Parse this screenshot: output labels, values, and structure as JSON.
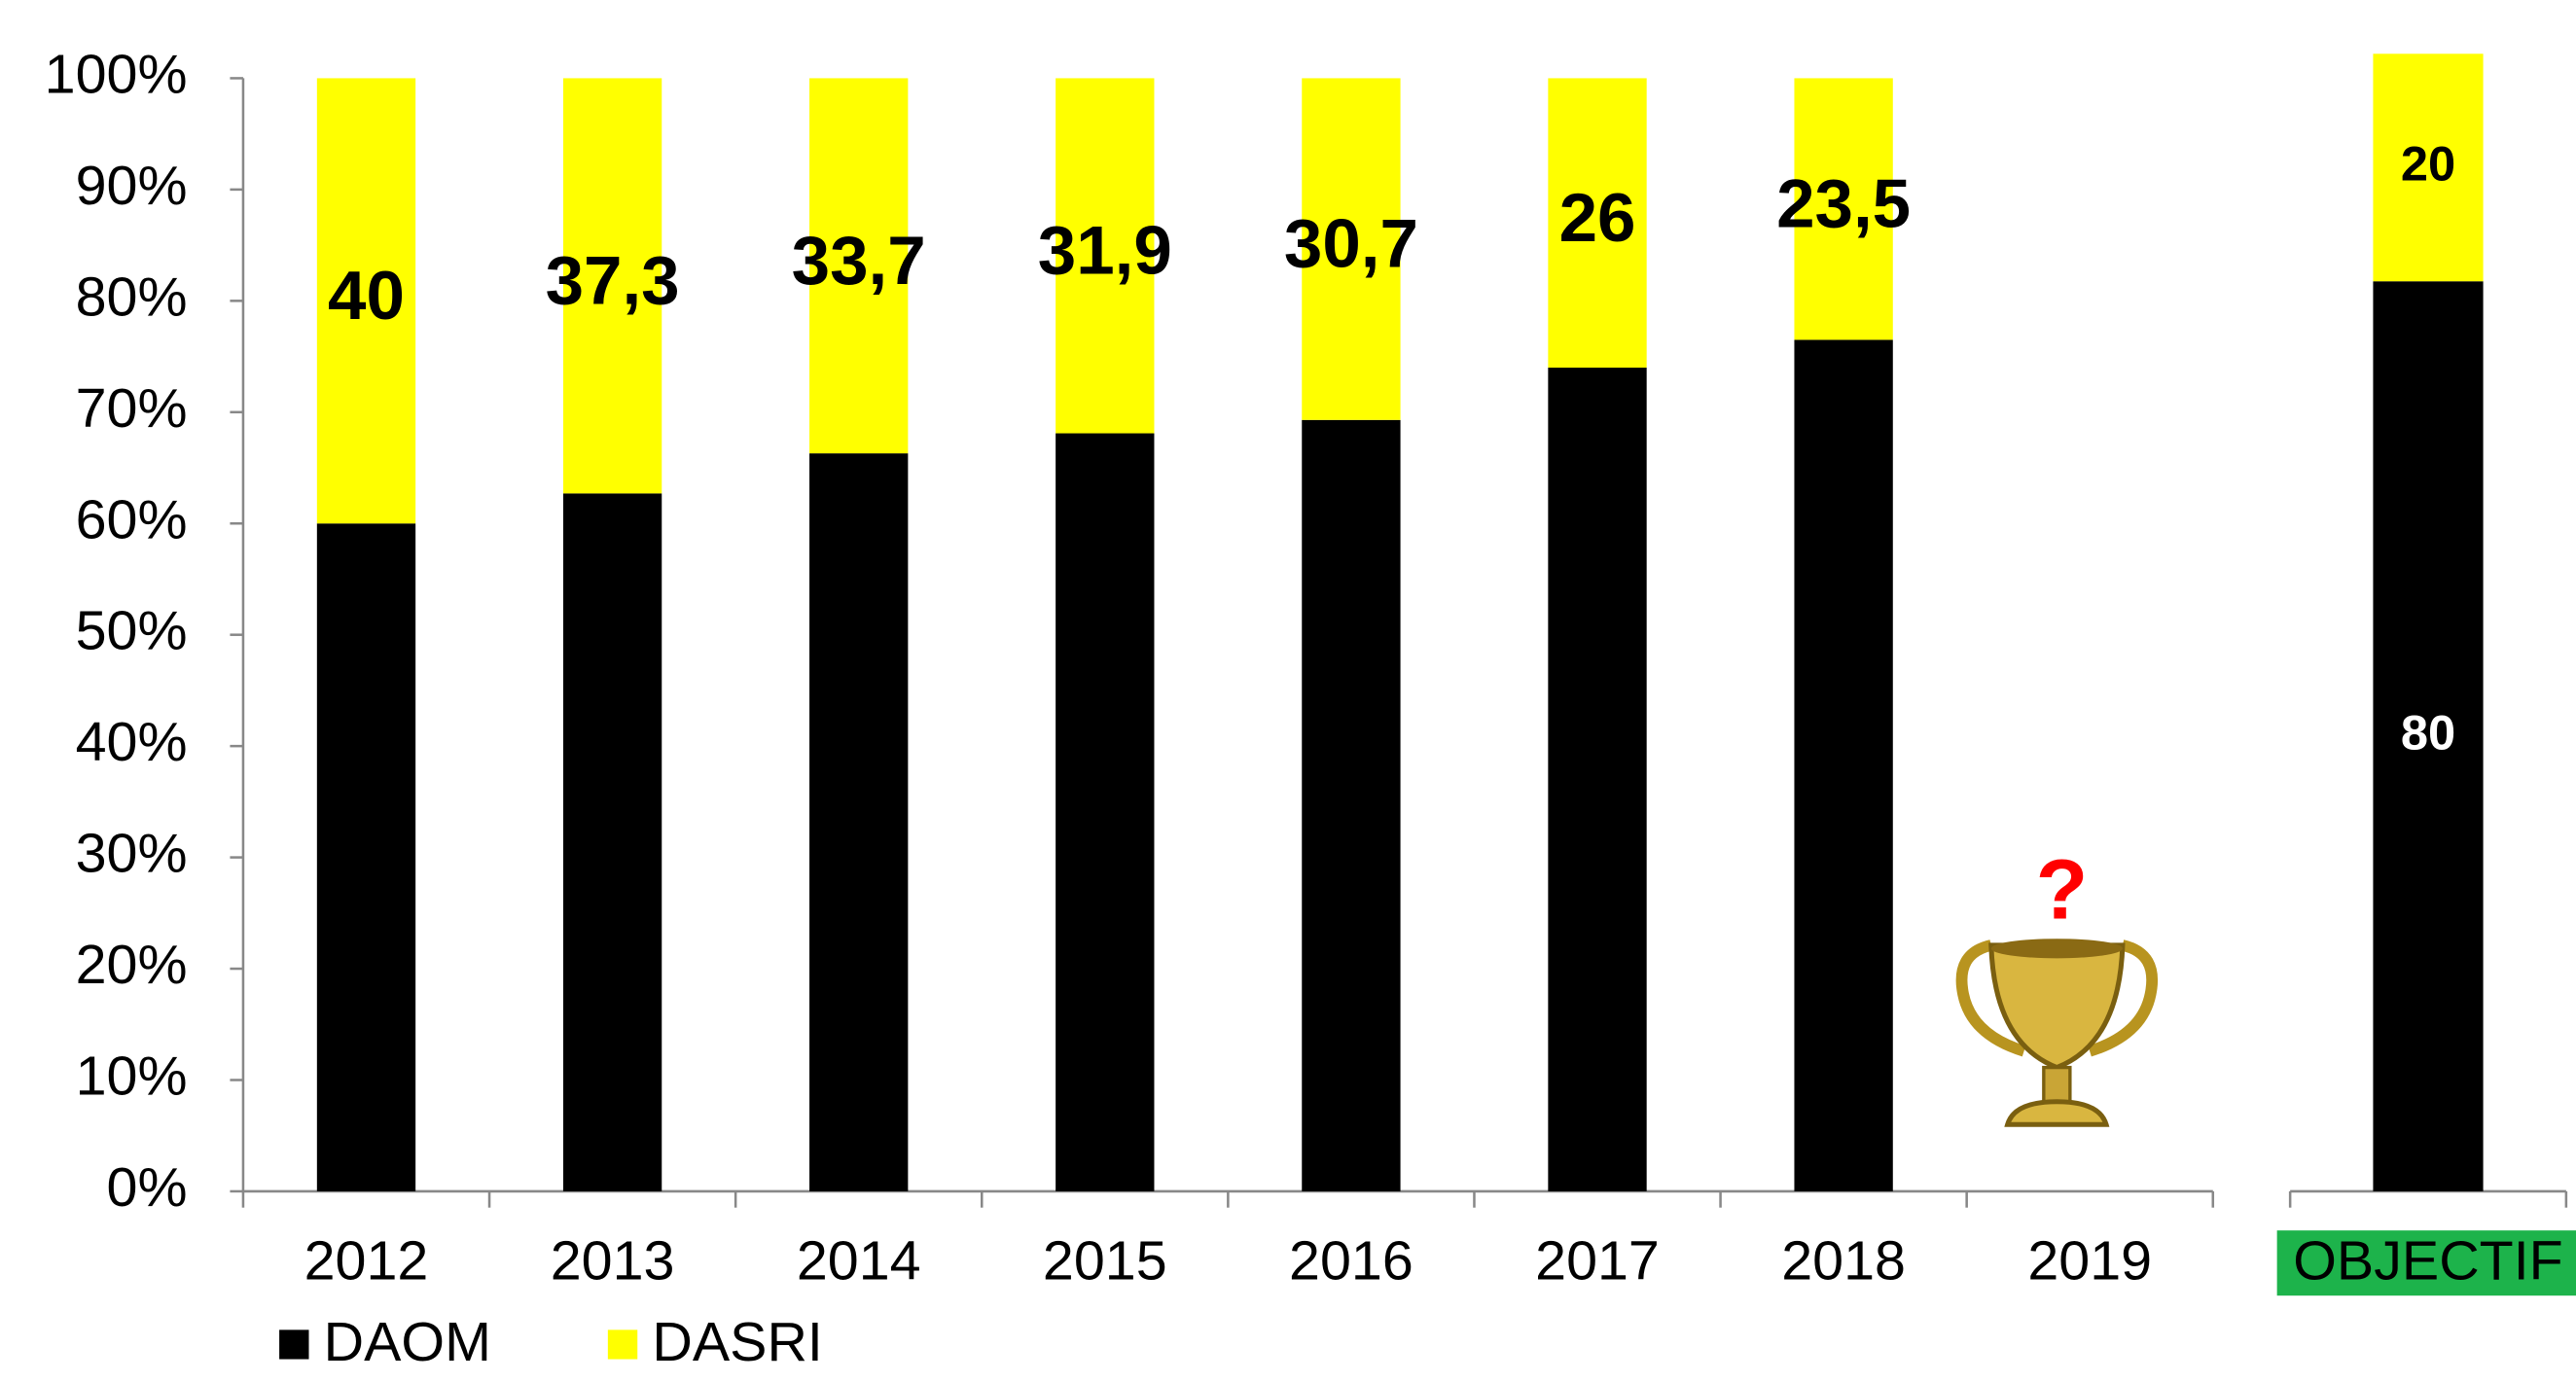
{
  "chart_data": [
    {
      "type": "stacked_bar",
      "categories": [
        "2012",
        "2013",
        "2014",
        "2015",
        "2016",
        "2017",
        "2018",
        "2019"
      ],
      "series": [
        {
          "name": "DAOM",
          "color": "#000000",
          "values": [
            60,
            62.7,
            66.3,
            68.1,
            69.3,
            74,
            76.5,
            null
          ]
        },
        {
          "name": "DASRI",
          "color": "#ffff00",
          "values": [
            40,
            37.3,
            33.7,
            31.9,
            30.7,
            26,
            23.5,
            null
          ],
          "value_labels": [
            "40",
            "37,3",
            "33,7",
            "31,9",
            "30,7",
            "26",
            "23,5",
            null
          ],
          "label_color": "#000000"
        }
      ],
      "ylim": [
        0,
        100
      ],
      "yticks": [
        {
          "value": 0,
          "label": "0%"
        },
        {
          "value": 10,
          "label": "10%"
        },
        {
          "value": 20,
          "label": "20%"
        },
        {
          "value": 30,
          "label": "30%"
        },
        {
          "value": 40,
          "label": "40%"
        },
        {
          "value": 50,
          "label": "50%"
        },
        {
          "value": 60,
          "label": "60%"
        },
        {
          "value": 70,
          "label": "70%"
        },
        {
          "value": 80,
          "label": "80%"
        },
        {
          "value": 90,
          "label": "90%"
        },
        {
          "value": 100,
          "label": "100%"
        }
      ],
      "annotations": [
        "?"
      ],
      "legend": "bottom-left"
    },
    {
      "type": "stacked_bar",
      "categories": [
        "OBJECTIF"
      ],
      "category_background": "#1db34b",
      "series": [
        {
          "name": "DAOM",
          "color": "#000000",
          "values": [
            80
          ],
          "label_color": "#ffffff"
        },
        {
          "name": "DASRI",
          "color": "#ffff00",
          "values": [
            20
          ],
          "label_color": "#000000"
        }
      ],
      "ylim": [
        0,
        100
      ]
    }
  ]
}
